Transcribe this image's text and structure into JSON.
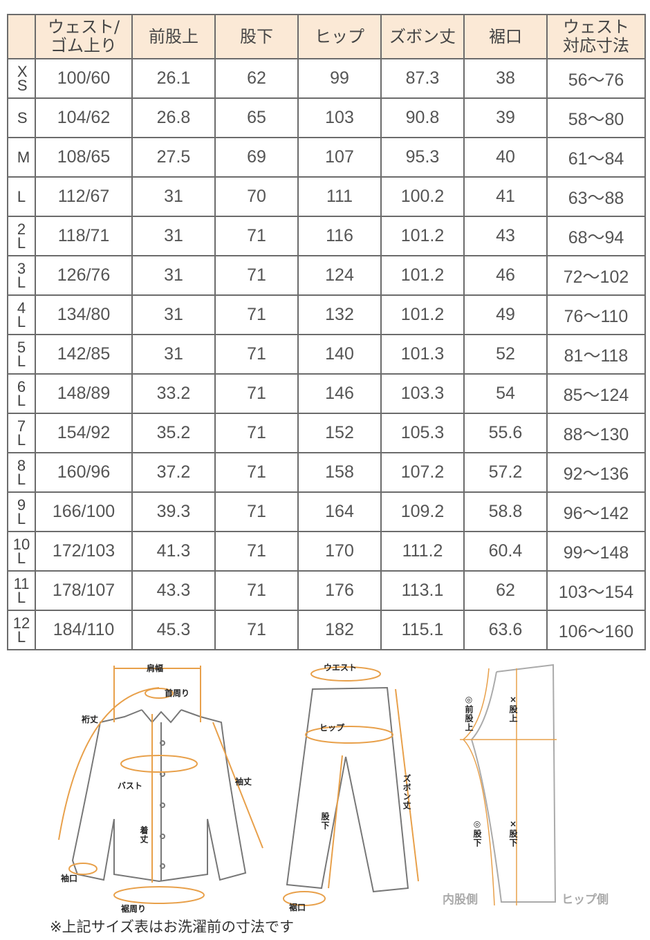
{
  "table": {
    "headers": [
      "",
      "ウェスト/\nゴム上り",
      "前股上",
      "股下",
      "ヒップ",
      "ズボン丈",
      "裾口",
      "ウェスト\n対応寸法"
    ],
    "rows": [
      [
        "XS",
        "100/60",
        "26.1",
        "62",
        "99",
        "87.3",
        "38",
        "56～76"
      ],
      [
        "S",
        "104/62",
        "26.8",
        "65",
        "103",
        "90.8",
        "39",
        "58～80"
      ],
      [
        "M",
        "108/65",
        "27.5",
        "69",
        "107",
        "95.3",
        "40",
        "61～84"
      ],
      [
        "L",
        "112/67",
        "31",
        "70",
        "111",
        "100.2",
        "41",
        "63～88"
      ],
      [
        "2L",
        "118/71",
        "31",
        "71",
        "116",
        "101.2",
        "43",
        "68～94"
      ],
      [
        "3L",
        "126/76",
        "31",
        "71",
        "124",
        "101.2",
        "46",
        "72～102"
      ],
      [
        "4L",
        "134/80",
        "31",
        "71",
        "132",
        "101.2",
        "49",
        "76～110"
      ],
      [
        "5L",
        "142/85",
        "31",
        "71",
        "140",
        "101.3",
        "52",
        "81～118"
      ],
      [
        "6L",
        "148/89",
        "33.2",
        "71",
        "146",
        "103.3",
        "54",
        "85～124"
      ],
      [
        "7L",
        "154/92",
        "35.2",
        "71",
        "152",
        "105.3",
        "55.6",
        "88～130"
      ],
      [
        "8L",
        "160/96",
        "37.2",
        "71",
        "158",
        "107.2",
        "57.2",
        "92～136"
      ],
      [
        "9L",
        "166/100",
        "39.3",
        "71",
        "164",
        "109.2",
        "58.8",
        "96～142"
      ],
      [
        "10L",
        "172/103",
        "41.3",
        "71",
        "170",
        "111.2",
        "60.4",
        "99～148"
      ],
      [
        "11L",
        "178/107",
        "43.3",
        "71",
        "176",
        "113.1",
        "62",
        "103～154"
      ],
      [
        "12L",
        "184/110",
        "45.3",
        "71",
        "182",
        "115.1",
        "63.6",
        "106～160"
      ]
    ],
    "header_bg": "#fbe9d6",
    "border_color": "#6b6b6b"
  },
  "diagram": {
    "accent": "#e8a04a",
    "shirt": {
      "shoulder": "肩幅",
      "neck": "首周り",
      "yuki": "裄丈",
      "sleeve": "袖丈",
      "bust": "バスト",
      "length": "着丈",
      "cuff": "袖口",
      "hem": "裾周り"
    },
    "pants": {
      "waist": "ウエスト",
      "hip": "ヒップ",
      "inseam": "股下",
      "length": "ズボン丈",
      "hem": "裾口"
    },
    "side": {
      "front_rise": "◎前股上",
      "rise": "×股上",
      "inseam_inner": "◎股下",
      "inseam": "×股下",
      "inner_side": "内股側",
      "hip_side": "ヒップ側"
    }
  },
  "note": "※上記サイズ表はお洗濯前の寸法です"
}
